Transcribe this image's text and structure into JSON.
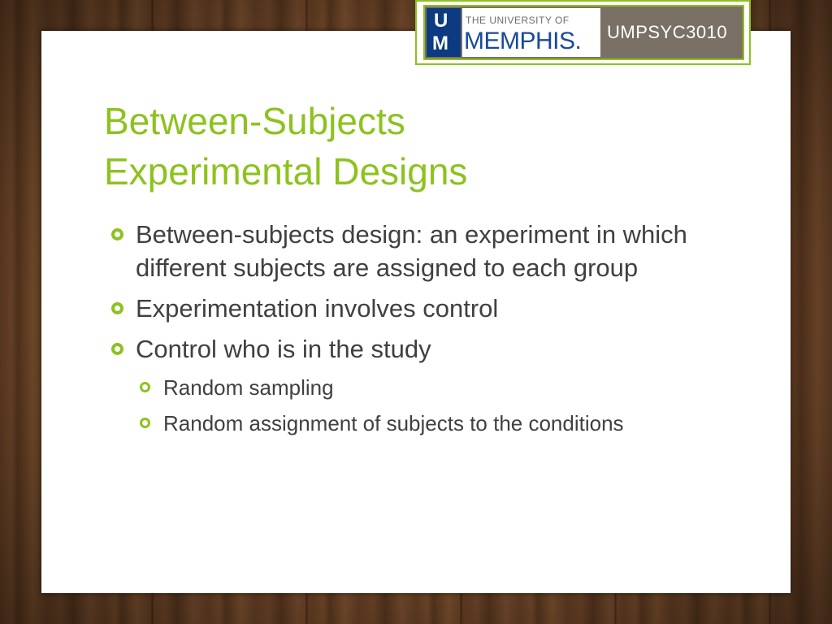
{
  "logo": {
    "u_letter": "U",
    "m_letter": "M",
    "university_of": "THE UNIVERSITY OF",
    "memphis": "MEMPHIS.",
    "course_code": "UMPSYC3010"
  },
  "slide": {
    "title_line1": "Between-Subjects",
    "title_line2": "Experimental Designs",
    "bullets": [
      "Between-subjects design: an experiment in which different subjects are assigned to each group",
      "Experimentation involves control",
      "Control who is in the study"
    ],
    "sub_bullets": [
      "Random sampling",
      "Random assignment of subjects to the conditions"
    ]
  },
  "colors": {
    "accent": "#8dc21f",
    "text": "#404040",
    "logo_blue": "#0d3b82"
  }
}
